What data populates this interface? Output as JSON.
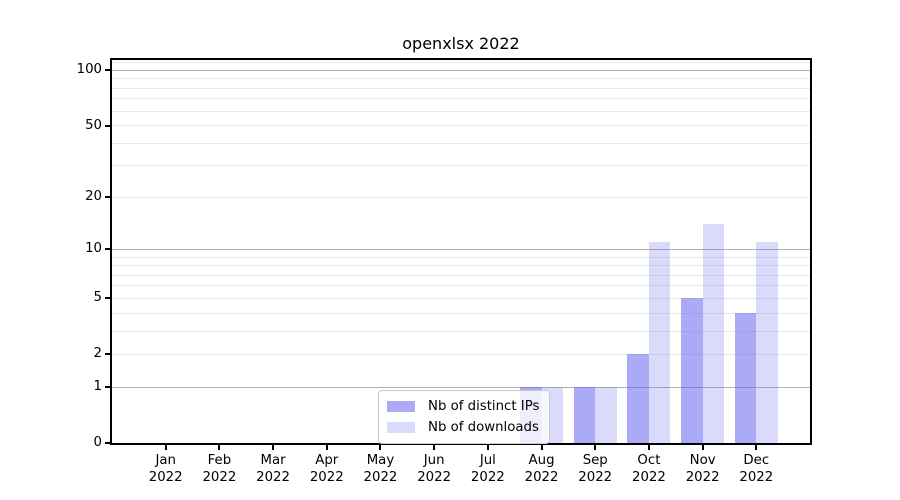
{
  "chart_data": {
    "type": "bar",
    "title": "openxlsx 2022",
    "xlabel": "",
    "ylabel": "",
    "categories": [
      "Jan",
      "Feb",
      "Mar",
      "Apr",
      "May",
      "Jun",
      "Jul",
      "Aug",
      "Sep",
      "Oct",
      "Nov",
      "Dec"
    ],
    "year_label": "2022",
    "series": [
      {
        "name": "Nb of distinct IPs",
        "color": "rgba(100,100,240,0.55)",
        "values": [
          0,
          0,
          0,
          0,
          0,
          0,
          0,
          1,
          1,
          2,
          5,
          4
        ]
      },
      {
        "name": "Nb of downloads",
        "color": "rgba(100,100,240,0.24)",
        "values": [
          0,
          0,
          0,
          0,
          0,
          0,
          0,
          1,
          1,
          11,
          14,
          11
        ]
      }
    ],
    "yscale": "log1p",
    "ylim": [
      0,
      114
    ],
    "y_ticks": [
      0,
      1,
      2,
      5,
      10,
      20,
      50,
      100
    ],
    "grid": {
      "major": [
        1,
        10,
        100
      ],
      "minor": [
        2,
        3,
        4,
        5,
        6,
        7,
        8,
        9,
        20,
        30,
        40,
        50,
        60,
        70,
        80,
        90,
        110
      ]
    },
    "legend": {
      "position": "lower-center-inside"
    },
    "colors": {
      "bar_base": "#6464f0",
      "major_grid": "#b0b0b0",
      "minor_grid": "#e9e9e9",
      "spine": "#000000",
      "background": "#ffffff"
    }
  }
}
